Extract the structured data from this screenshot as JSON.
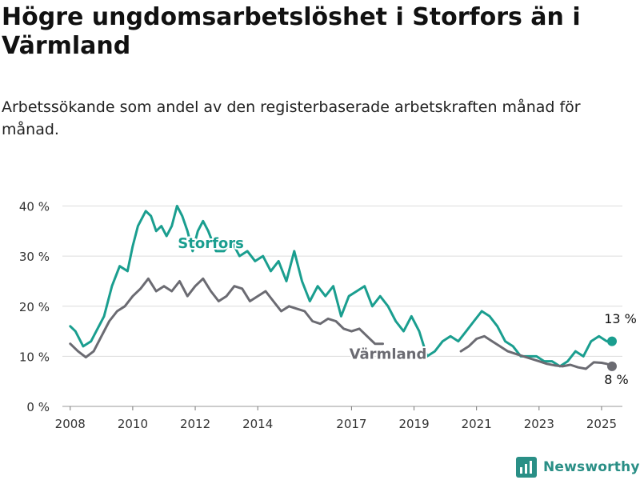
{
  "header": {
    "title": "Högre ungdomsarbetslöshet i Storfors än i Värmland",
    "subtitle": "Arbetssökande som andel av den registerbaserade arbetskraften månad för månad."
  },
  "brand": {
    "name": "Newsworthy",
    "color": "#2a8f86"
  },
  "chart_data": {
    "type": "line",
    "title": "Högre ungdomsarbetslöshet i Storfors än i Värmland",
    "subtitle": "Arbetssökande som andel av den registerbaserade arbetskraften månad för månad.",
    "xlabel": "",
    "ylabel": "",
    "x_ticks": [
      "2008",
      "2010",
      "2012",
      "2014",
      "2017",
      "2019",
      "2021",
      "2023",
      "2025"
    ],
    "y_ticks": [
      "0 %",
      "10 %",
      "20 %",
      "30 %",
      "40 %"
    ],
    "ylim": [
      0,
      42
    ],
    "xlim": [
      "2007-10",
      "2025-09"
    ],
    "grid": "horizontal",
    "series": [
      {
        "name": "Storfors",
        "color": "#1a9e8f",
        "end_label": "13 %",
        "points": [
          [
            "2008-01",
            16
          ],
          [
            "2008-03",
            15
          ],
          [
            "2008-06",
            12
          ],
          [
            "2008-09",
            13
          ],
          [
            "2008-11",
            15
          ],
          [
            "2009-02",
            18
          ],
          [
            "2009-05",
            24
          ],
          [
            "2009-08",
            28
          ],
          [
            "2009-11",
            27
          ],
          [
            "2010-01",
            32
          ],
          [
            "2010-03",
            36
          ],
          [
            "2010-06",
            39
          ],
          [
            "2010-08",
            38
          ],
          [
            "2010-10",
            35
          ],
          [
            "2010-12",
            36
          ],
          [
            "2011-02",
            34
          ],
          [
            "2011-04",
            36
          ],
          [
            "2011-06",
            40
          ],
          [
            "2011-08",
            38
          ],
          [
            "2011-10",
            35
          ],
          [
            "2011-12",
            31
          ],
          [
            "2012-02",
            35
          ],
          [
            "2012-04",
            37
          ],
          [
            "2012-06",
            35
          ],
          [
            "2012-09",
            31
          ],
          [
            "2012-12",
            31
          ],
          [
            "2013-03",
            33
          ],
          [
            "2013-06",
            30
          ],
          [
            "2013-09",
            31
          ],
          [
            "2013-12",
            29
          ],
          [
            "2014-03",
            30
          ],
          [
            "2014-06",
            27
          ],
          [
            "2014-09",
            29
          ],
          [
            "2014-12",
            25
          ],
          [
            "2015-03",
            31
          ],
          [
            "2015-06",
            25
          ],
          [
            "2015-09",
            21
          ],
          [
            "2015-12",
            24
          ],
          [
            "2016-03",
            22
          ],
          [
            "2016-06",
            24
          ],
          [
            "2016-09",
            18
          ],
          [
            "2016-12",
            22
          ],
          [
            "2017-03",
            23
          ],
          [
            "2017-06",
            24
          ],
          [
            "2017-09",
            20
          ],
          [
            "2017-12",
            22
          ],
          [
            "2018-03",
            20
          ],
          [
            "2018-06",
            17
          ],
          [
            "2018-09",
            15
          ],
          [
            "2018-12",
            18
          ],
          [
            "2019-03",
            15
          ],
          [
            "2019-06",
            10
          ],
          [
            "2019-09",
            11
          ],
          [
            "2019-12",
            13
          ],
          [
            "2020-03",
            14
          ],
          [
            "2020-06",
            13
          ],
          [
            "2020-09",
            15
          ],
          [
            "2020-12",
            17
          ],
          [
            "2021-03",
            19
          ],
          [
            "2021-06",
            18
          ],
          [
            "2021-09",
            16
          ],
          [
            "2021-12",
            13
          ],
          [
            "2022-03",
            12
          ],
          [
            "2022-06",
            10
          ],
          [
            "2022-09",
            10
          ],
          [
            "2022-12",
            10
          ],
          [
            "2023-03",
            9
          ],
          [
            "2023-06",
            9
          ],
          [
            "2023-09",
            8
          ],
          [
            "2023-12",
            9
          ],
          [
            "2024-03",
            11
          ],
          [
            "2024-06",
            10
          ],
          [
            "2024-09",
            13
          ],
          [
            "2024-12",
            14
          ],
          [
            "2025-03",
            13
          ],
          [
            "2025-05",
            13
          ]
        ]
      },
      {
        "name": "Värmland",
        "color": "#6b6b72",
        "end_label": "8 %",
        "points": [
          [
            "2008-01",
            12.5
          ],
          [
            "2008-04",
            11
          ],
          [
            "2008-07",
            9.8
          ],
          [
            "2008-10",
            11
          ],
          [
            "2009-01",
            14
          ],
          [
            "2009-04",
            17
          ],
          [
            "2009-07",
            19
          ],
          [
            "2009-10",
            20
          ],
          [
            "2010-01",
            22
          ],
          [
            "2010-04",
            23.5
          ],
          [
            "2010-07",
            25.5
          ],
          [
            "2010-10",
            23
          ],
          [
            "2011-01",
            24
          ],
          [
            "2011-04",
            23
          ],
          [
            "2011-07",
            25
          ],
          [
            "2011-10",
            22
          ],
          [
            "2012-01",
            24
          ],
          [
            "2012-04",
            25.5
          ],
          [
            "2012-07",
            23
          ],
          [
            "2012-10",
            21
          ],
          [
            "2013-01",
            22
          ],
          [
            "2013-04",
            24
          ],
          [
            "2013-07",
            23.5
          ],
          [
            "2013-10",
            21
          ],
          [
            "2014-01",
            22
          ],
          [
            "2014-04",
            23
          ],
          [
            "2014-07",
            21
          ],
          [
            "2014-10",
            19
          ],
          [
            "2015-01",
            20
          ],
          [
            "2015-04",
            19.5
          ],
          [
            "2015-07",
            19
          ],
          [
            "2015-10",
            17
          ],
          [
            "2016-01",
            16.5
          ],
          [
            "2016-04",
            17.5
          ],
          [
            "2016-07",
            17
          ],
          [
            "2016-10",
            15.5
          ],
          [
            "2017-01",
            15
          ],
          [
            "2017-04",
            15.5
          ],
          [
            "2017-07",
            14
          ],
          [
            "2017-10",
            12.5
          ],
          [
            "2018-01",
            12.5
          ]
        ]
      },
      {
        "name": "Värmland (forts.)",
        "color": "#6b6b72",
        "points": [
          [
            "2020-07",
            11
          ],
          [
            "2020-10",
            12
          ],
          [
            "2021-01",
            13.5
          ],
          [
            "2021-04",
            14
          ],
          [
            "2021-07",
            13
          ],
          [
            "2021-10",
            12
          ],
          [
            "2022-01",
            11
          ],
          [
            "2022-04",
            10.5
          ],
          [
            "2022-07",
            10
          ],
          [
            "2022-10",
            9.5
          ],
          [
            "2023-01",
            9
          ],
          [
            "2023-04",
            8.5
          ],
          [
            "2023-07",
            8.2
          ],
          [
            "2023-10",
            8
          ],
          [
            "2024-01",
            8.3
          ],
          [
            "2024-04",
            7.8
          ],
          [
            "2024-07",
            7.5
          ],
          [
            "2024-10",
            8.8
          ],
          [
            "2025-01",
            8.7
          ],
          [
            "2025-03",
            8.5
          ],
          [
            "2025-05",
            8
          ]
        ]
      }
    ],
    "annotations": [
      {
        "text": "Storfors",
        "x": "2012-07",
        "y": 31.6,
        "color": "#1a9e8f"
      },
      {
        "text": "Värmland",
        "x": "2018-03",
        "y": 9.5,
        "color": "#6b6b72"
      },
      {
        "text": "13 %",
        "x": "2025-02",
        "y": 16.6,
        "color": "#111111"
      },
      {
        "text": "8 %",
        "x": "2025-02",
        "y": 4.5,
        "color": "#111111"
      }
    ]
  }
}
